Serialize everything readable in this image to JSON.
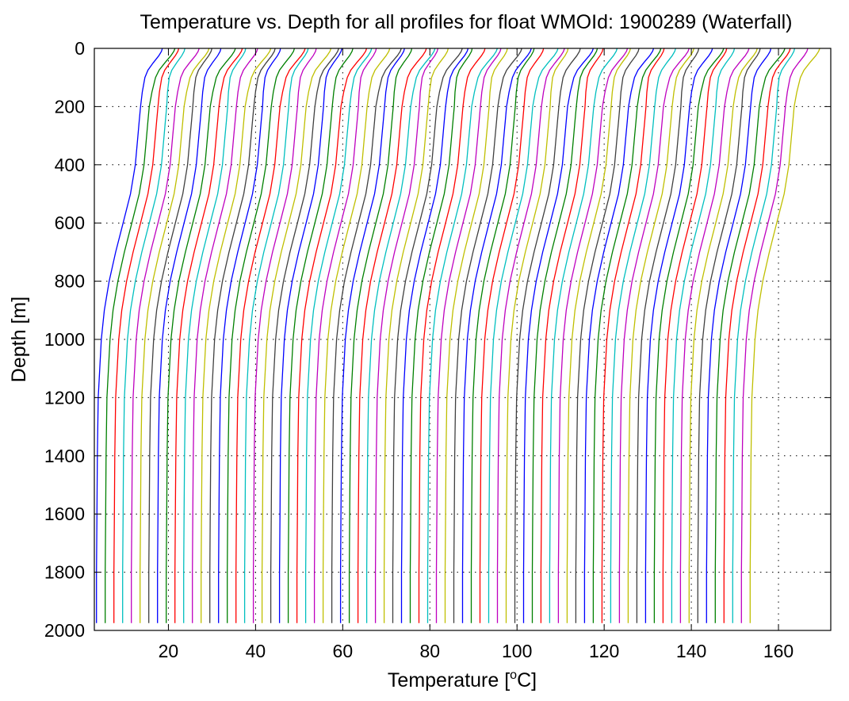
{
  "chart_data": {
    "type": "line",
    "title": "Temperature vs. Depth for all profiles for float WMOId: 1900289 (Waterfall)",
    "xlabel": "Temperature [°C]",
    "xlabel_parts": {
      "prefix": "Temperature [",
      "superscript": "o",
      "suffix": "C]"
    },
    "ylabel": "Depth [m]",
    "xlim": [
      3,
      172
    ],
    "ylim": [
      0,
      2000
    ],
    "y_reversed": true,
    "grid": true,
    "legend": "none",
    "xticks": [
      20,
      40,
      60,
      80,
      100,
      120,
      140,
      160
    ],
    "yticks": [
      0,
      200,
      400,
      600,
      800,
      1000,
      1200,
      1400,
      1600,
      1800,
      2000
    ],
    "series_colors": [
      "#0000ff",
      "#008000",
      "#ff0000",
      "#00bfbf",
      "#bf00bf",
      "#bfbf00",
      "#404040"
    ],
    "profile_count": 76,
    "profile_spacing_degC": 2,
    "profile_max_depth": 1975,
    "base_profile": {
      "depth": [
        0,
        10,
        25,
        50,
        75,
        100,
        150,
        200,
        250,
        300,
        400,
        500,
        600,
        700,
        800,
        900,
        1000,
        1200,
        1400,
        1600,
        1800,
        1975
      ],
      "temperature": [
        18.6,
        18.4,
        17.8,
        16.5,
        15.3,
        14.6,
        14.0,
        13.6,
        13.3,
        13.0,
        12.4,
        11.3,
        9.6,
        7.9,
        6.4,
        5.3,
        4.6,
        3.9,
        3.7,
        3.6,
        3.5,
        3.5
      ]
    }
  }
}
